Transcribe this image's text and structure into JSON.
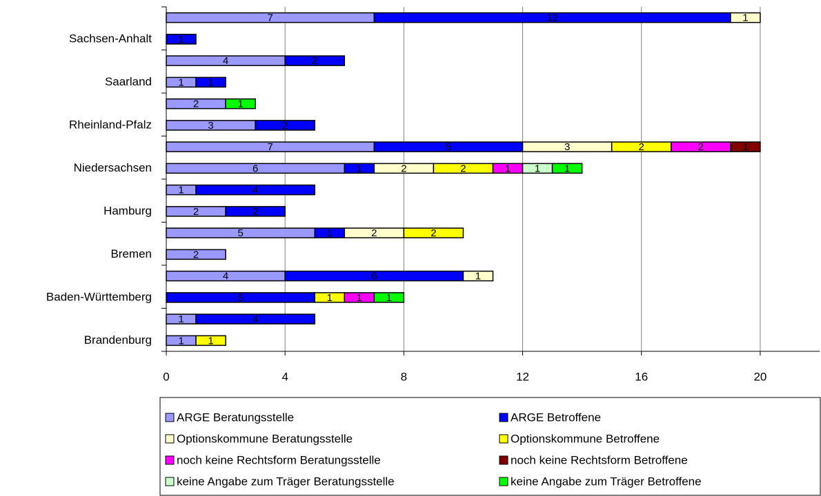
{
  "chart_data": {
    "type": "stacked-bar-horizontal",
    "categories": [
      null,
      "Sachsen-Anhalt",
      null,
      "Saarland",
      null,
      "Rheinland-Pfalz",
      null,
      "Niedersachsen",
      null,
      "Hamburg",
      null,
      "Bremen",
      null,
      "Baden-Württemberg",
      null,
      "Brandenburg"
    ],
    "series": [
      {
        "name": "ARGE Beratungsstelle",
        "color": "#9999ff",
        "values": [
          7,
          null,
          4,
          1,
          2,
          3,
          7,
          6,
          1,
          2,
          5,
          2,
          4,
          null,
          1,
          1
        ]
      },
      {
        "name": "ARGE Betroffene",
        "color": "#0000ff",
        "values": [
          12,
          1,
          2,
          1,
          null,
          2,
          5,
          1,
          4,
          2,
          1,
          null,
          6,
          5,
          4,
          null
        ]
      },
      {
        "name": "Optionskommune Beratungsstelle",
        "color": "#ffffcc",
        "values": [
          1,
          null,
          null,
          null,
          null,
          null,
          3,
          2,
          null,
          null,
          2,
          null,
          1,
          null,
          null,
          null
        ]
      },
      {
        "name": "Optionskommune Betroffene",
        "color": "#ffff00",
        "values": [
          null,
          null,
          null,
          null,
          null,
          null,
          2,
          2,
          null,
          null,
          2,
          null,
          null,
          1,
          null,
          1
        ]
      },
      {
        "name": "noch keine Rechtsform Beratungsstelle",
        "color": "#ff00ff",
        "values": [
          null,
          null,
          null,
          null,
          null,
          null,
          2,
          1,
          null,
          null,
          null,
          null,
          null,
          1,
          null,
          null
        ]
      },
      {
        "name": "noch keine Rechtsform Betroffene",
        "color": "#800000",
        "values": [
          null,
          null,
          null,
          null,
          null,
          null,
          1,
          null,
          null,
          null,
          null,
          null,
          null,
          null,
          null,
          null
        ]
      },
      {
        "name": "keine Angabe zum Träger Beratungsstelle",
        "color": "#ccffcc",
        "values": [
          null,
          null,
          null,
          null,
          null,
          null,
          null,
          1,
          null,
          null,
          null,
          null,
          null,
          null,
          null,
          null
        ]
      },
      {
        "name": "keine Angabe zum Träger Betroffene",
        "color": "#00ff00",
        "values": [
          null,
          null,
          null,
          null,
          1,
          null,
          null,
          1,
          null,
          null,
          null,
          null,
          null,
          1,
          null,
          null
        ]
      }
    ],
    "xlim": [
      0,
      22
    ],
    "xticks": [
      0,
      4,
      8,
      12,
      16,
      20
    ],
    "grid": true
  }
}
